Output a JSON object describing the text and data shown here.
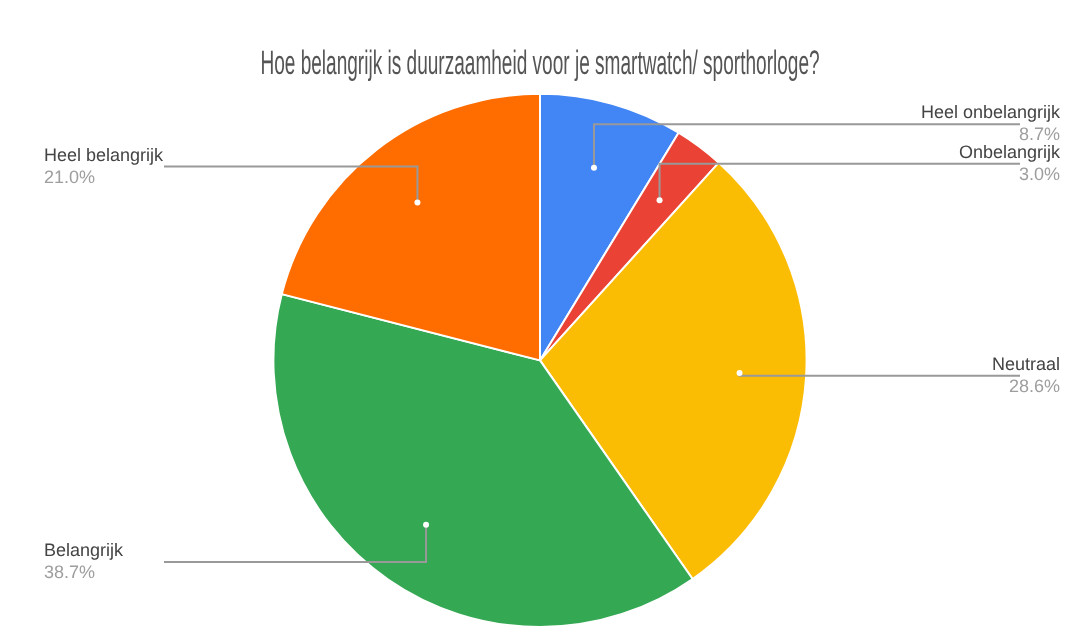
{
  "chart_data": {
    "type": "pie",
    "title": "Hoe belangrijk is duurzaamheid voor je smartwatch/ sporthorloge?",
    "categories": [
      "Heel onbelangrijk",
      "Onbelangrijk",
      "Neutraal",
      "Belangrijk",
      "Heel belangrijk"
    ],
    "values": [
      8.7,
      3.0,
      28.6,
      38.7,
      21.0
    ],
    "value_labels": [
      "8.7%",
      "3.0%",
      "28.6%",
      "38.7%",
      "21.0%"
    ],
    "colors": [
      "#4285f4",
      "#ea4335",
      "#fbbc04",
      "#34a853",
      "#ff6d01"
    ]
  }
}
